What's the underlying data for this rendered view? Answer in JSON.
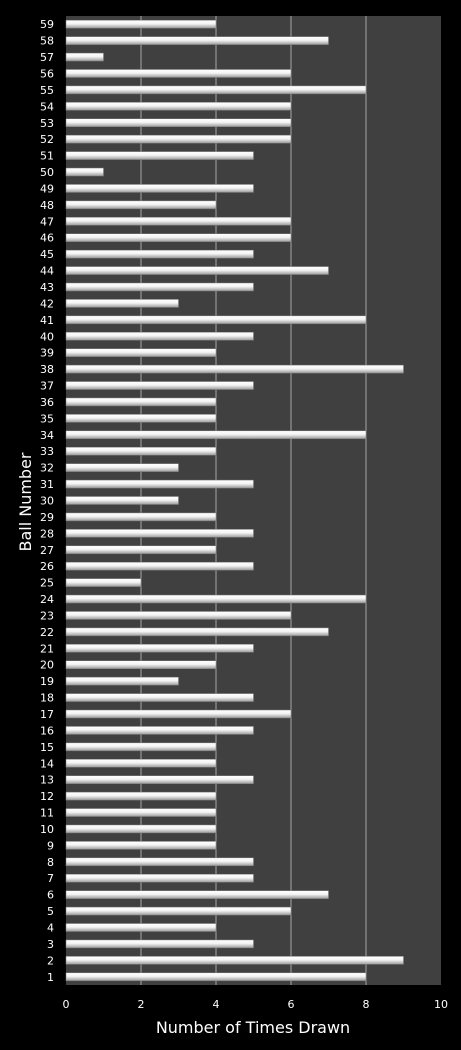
{
  "chart_data": {
    "type": "bar",
    "orientation": "horizontal",
    "title": "",
    "xlabel": "Number of Times Drawn",
    "ylabel": "Ball Number",
    "xlim": [
      0,
      10
    ],
    "xticks": [
      0,
      2,
      4,
      6,
      8,
      10
    ],
    "grid": true,
    "legend": "none",
    "colors": {
      "background": "#000000",
      "plot_area": "#404040",
      "bar": "#f2f2f2",
      "gridline": "#a6a6a6",
      "text": "#ffffff"
    },
    "categories": [
      "1",
      "2",
      "3",
      "4",
      "5",
      "6",
      "7",
      "8",
      "9",
      "10",
      "11",
      "12",
      "13",
      "14",
      "15",
      "16",
      "17",
      "18",
      "19",
      "20",
      "21",
      "22",
      "23",
      "24",
      "25",
      "26",
      "27",
      "28",
      "29",
      "30",
      "31",
      "32",
      "33",
      "34",
      "35",
      "36",
      "37",
      "38",
      "39",
      "40",
      "41",
      "42",
      "43",
      "44",
      "45",
      "46",
      "47",
      "48",
      "49",
      "50",
      "51",
      "52",
      "53",
      "54",
      "55",
      "56",
      "57",
      "58",
      "59"
    ],
    "values": [
      8,
      9,
      5,
      4,
      6,
      7,
      5,
      5,
      4,
      4,
      4,
      4,
      5,
      4,
      4,
      5,
      6,
      5,
      3,
      4,
      5,
      7,
      6,
      8,
      2,
      5,
      4,
      5,
      4,
      3,
      5,
      3,
      4,
      8,
      4,
      4,
      5,
      9,
      4,
      5,
      8,
      3,
      5,
      7,
      5,
      6,
      6,
      4,
      5,
      1,
      5,
      6,
      6,
      6,
      8,
      6,
      1,
      7,
      4
    ]
  }
}
